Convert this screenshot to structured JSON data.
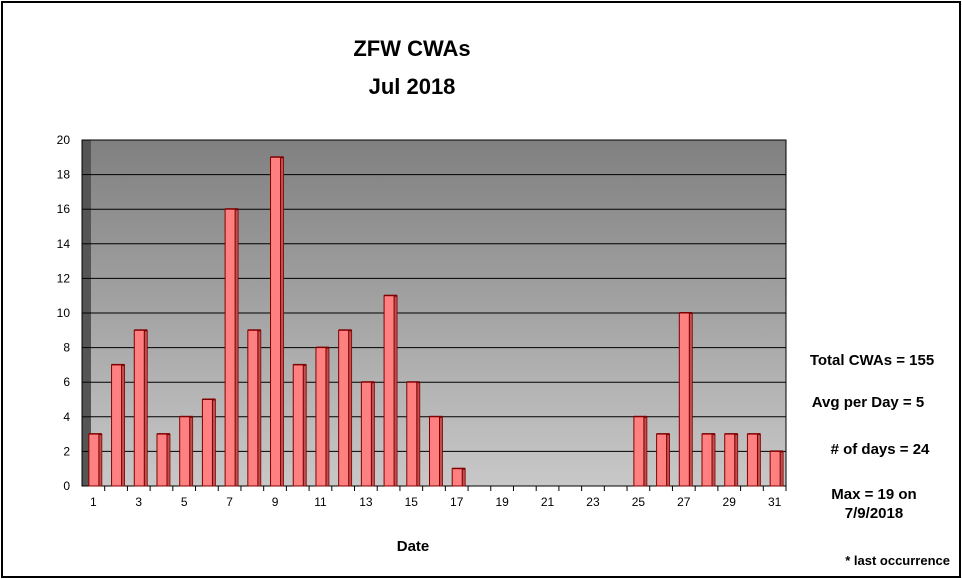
{
  "chart_data": {
    "type": "bar",
    "title": "ZFW CWAs",
    "subtitle": "Jul 2018",
    "xlabel": "Date",
    "ylabel": "",
    "ylim": [
      0,
      20
    ],
    "yticks": [
      "0",
      "2",
      "4",
      "6",
      "8",
      "10",
      "12",
      "14",
      "16",
      "18",
      "20"
    ],
    "categories": [
      "1",
      "2",
      "3",
      "4",
      "5",
      "6",
      "7",
      "8",
      "9",
      "10",
      "11",
      "12",
      "13",
      "14",
      "15",
      "16",
      "17",
      "18",
      "19",
      "20",
      "21",
      "22",
      "23",
      "24",
      "25",
      "26",
      "27",
      "28",
      "29",
      "30",
      "31"
    ],
    "xtick_labels": [
      "1",
      "",
      "3",
      "",
      "5",
      "",
      "7",
      "",
      "9",
      "",
      "11",
      "",
      "13",
      "",
      "15",
      "",
      "17",
      "",
      "19",
      "",
      "21",
      "",
      "23",
      "",
      "25",
      "",
      "27",
      "",
      "29",
      "",
      "31"
    ],
    "values": [
      3,
      7,
      9,
      3,
      4,
      5,
      16,
      9,
      19,
      7,
      8,
      9,
      6,
      11,
      6,
      4,
      1,
      0,
      0,
      0,
      0,
      0,
      0,
      0,
      4,
      3,
      10,
      3,
      3,
      3,
      2
    ],
    "grid": true,
    "legend": "none",
    "colors": {
      "bar_fill": "#ff8080",
      "bar_edge": "#800000",
      "bar_side": "#c05050",
      "plot_bg_top": "#808080",
      "plot_bg_bottom": "#c8c8c8",
      "wall": "#555555",
      "gridline": "#000000"
    }
  },
  "stats": {
    "total": "Total CWAs = 155",
    "avg": "Avg per Day = 5",
    "days": "# of days = 24",
    "max_line1": "Max = 19 on",
    "max_line2": "7/9/2018",
    "footnote": "* last occurrence"
  }
}
